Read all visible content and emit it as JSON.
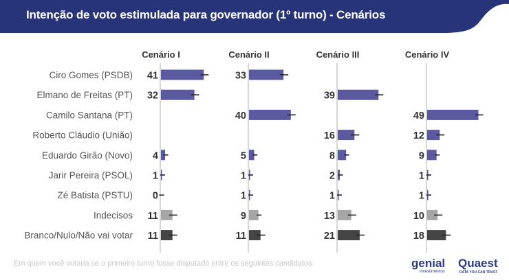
{
  "header": {
    "title": "Intenção de voto estimulada para governador (1º turno) - Cenários",
    "color": "#283479"
  },
  "footnote": "Em quem você votaria se o primeiro turno fosse disputado entre os seguintes candidatos:",
  "logos": {
    "genial": "genial",
    "genial_sub": "investimentos",
    "quaest": "Quaest",
    "quaest_sub": "DATA YOU CAN TRUST"
  },
  "colors": {
    "candidate": "#5b5aa0",
    "undecided": "#a6a6a6",
    "blank": "#454545"
  },
  "chart_data": {
    "type": "bar",
    "orientation": "horizontal",
    "title": "Intenção de voto estimulada para governador (1º turno) - Cenários",
    "categories": [
      "Ciro Gomes (PSDB)",
      "Elmano de Freitas (PT)",
      "Camilo Santana (PT)",
      "Roberto Cláudio (União)",
      "Eduardo Girão (Novo)",
      "Jarir Pereira (PSOL)",
      "Zé Batista (PSTU)",
      "Indecisos",
      "Branco/Nulo/Não vai votar"
    ],
    "category_kind": [
      "candidate",
      "candidate",
      "candidate",
      "candidate",
      "candidate",
      "candidate",
      "candidate",
      "undecided",
      "blank"
    ],
    "series": [
      {
        "name": "Cenário I",
        "values": [
          41,
          32,
          null,
          null,
          4,
          1,
          0,
          11,
          11
        ]
      },
      {
        "name": "Cenário II",
        "values": [
          33,
          null,
          40,
          null,
          5,
          1,
          1,
          9,
          11
        ]
      },
      {
        "name": "Cenário III",
        "values": [
          null,
          39,
          null,
          16,
          8,
          2,
          1,
          13,
          21
        ]
      },
      {
        "name": "Cenário IV",
        "values": [
          null,
          null,
          49,
          12,
          9,
          1,
          1,
          10,
          18
        ]
      }
    ],
    "error_bars": true,
    "xlabel": "",
    "ylabel": "",
    "xlim": [
      0,
      55
    ],
    "grid": false,
    "legend": "none"
  }
}
